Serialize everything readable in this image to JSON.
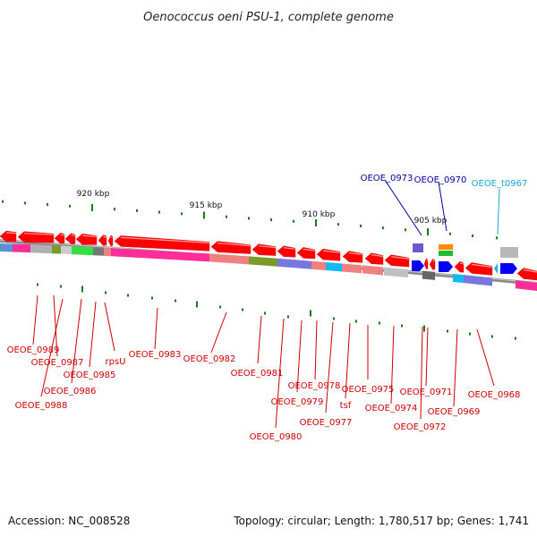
{
  "title": "Oenococcus oeni PSU-1, complete genome",
  "footer": {
    "accession": "Accession: NC_008528",
    "topology": "Topology: circular; Length: 1,780,517 bp; Genes: 1,741"
  },
  "colors": {
    "cds": "#ff0000",
    "rna_blue": "#0000ff",
    "trna": "#22b0e0",
    "label_red": "#cc0000",
    "label_blue": "#000099",
    "label_cyan": "#1aa6d9",
    "tick": "#1a7a1a",
    "backbone": "#909090"
  },
  "ticks": [
    {
      "label": "920 kbp"
    },
    {
      "label": "915 kbp"
    },
    {
      "label": "910 kbp"
    },
    {
      "label": "905 kbp"
    }
  ],
  "gene_labels": [
    {
      "text": "OEOE_0989",
      "color": "label_red"
    },
    {
      "text": "OEOE_0987",
      "color": "label_red"
    },
    {
      "text": "OEOE_0988",
      "color": "label_red"
    },
    {
      "text": "OEOE_0986",
      "color": "label_red"
    },
    {
      "text": "OEOE_0985",
      "color": "label_red"
    },
    {
      "text": "rpsU",
      "color": "label_red"
    },
    {
      "text": "OEOE_0983",
      "color": "label_red"
    },
    {
      "text": "OEOE_0982",
      "color": "label_red"
    },
    {
      "text": "OEOE_0981",
      "color": "label_red"
    },
    {
      "text": "OEOE_0980",
      "color": "label_red"
    },
    {
      "text": "OEOE_0979",
      "color": "label_red"
    },
    {
      "text": "OEOE_0978",
      "color": "label_red"
    },
    {
      "text": "OEOE_0977",
      "color": "label_red"
    },
    {
      "text": "tsf",
      "color": "label_red"
    },
    {
      "text": "OEOE_0975",
      "color": "label_red"
    },
    {
      "text": "OEOE_0974",
      "color": "label_red"
    },
    {
      "text": "OEOE_0972",
      "color": "label_red"
    },
    {
      "text": "OEOE_0971",
      "color": "label_red"
    },
    {
      "text": "OEOE_0969",
      "color": "label_red"
    },
    {
      "text": "OEOE_0968",
      "color": "label_red"
    },
    {
      "text": "OEOE_0973",
      "color": "label_blue"
    },
    {
      "text": "OEOE_0970",
      "color": "label_blue"
    },
    {
      "text": "OEOE_t0967",
      "color": "label_cyan"
    }
  ]
}
